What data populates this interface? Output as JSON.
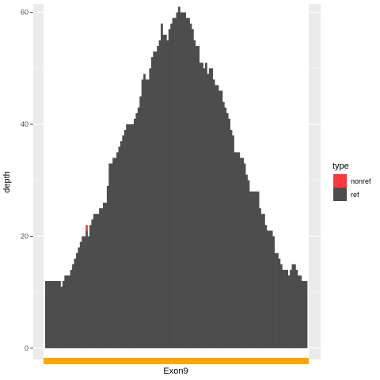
{
  "chart_data": {
    "type": "bar",
    "title": "",
    "xlabel": "",
    "ylabel": "depth",
    "ylim": [
      -2,
      61.5
    ],
    "yticks": [
      0,
      20,
      40,
      60
    ],
    "grid": true,
    "legend_position": "right",
    "legend_title": "type",
    "series": [
      {
        "name": "ref",
        "color": "#4d4d4d",
        "values": [
          12,
          12,
          12,
          12,
          12,
          12,
          12,
          12,
          11,
          12,
          13,
          13,
          13,
          14,
          15,
          16,
          17,
          18,
          19,
          20,
          20,
          21,
          20,
          22,
          23,
          24,
          24,
          24,
          25,
          25,
          26,
          26,
          29,
          33,
          33,
          34,
          34,
          35,
          36,
          37,
          38,
          39,
          40,
          40,
          40,
          40,
          41,
          42,
          43,
          45,
          48,
          49,
          48,
          48,
          50,
          52,
          53,
          53,
          54,
          55,
          58,
          56,
          56,
          55,
          57,
          58,
          59,
          59,
          60,
          61,
          60,
          60,
          60,
          59,
          59,
          58,
          57,
          55,
          54,
          54,
          51,
          51,
          50,
          51,
          49,
          50,
          50,
          48,
          47,
          47,
          46,
          46,
          44,
          43,
          42,
          41,
          39,
          38,
          35,
          35,
          35,
          34,
          34,
          33,
          31,
          30,
          28,
          28,
          28,
          28,
          28,
          25,
          24,
          24,
          22,
          21,
          21,
          21,
          20,
          17,
          17,
          16,
          15,
          14,
          14,
          14,
          13,
          14,
          15,
          15,
          14,
          13,
          13,
          12,
          12,
          12
        ]
      },
      {
        "name": "nonref",
        "color": "#f8393c",
        "values": [
          0,
          0,
          0,
          0,
          0,
          0,
          0,
          0,
          0,
          0,
          0,
          0,
          0,
          0,
          0,
          0,
          0,
          0,
          0,
          0,
          0,
          1,
          0,
          0,
          0,
          0,
          0,
          0,
          0,
          0,
          0,
          0,
          0,
          0,
          0,
          0,
          0,
          0,
          0,
          0,
          0,
          0,
          0,
          0,
          0,
          0,
          0,
          0,
          0,
          0,
          0,
          0,
          0,
          0,
          0,
          0,
          0,
          0,
          0,
          0,
          0,
          0,
          0,
          0,
          0,
          0,
          0,
          0,
          0,
          0,
          0,
          0,
          0,
          0,
          0,
          0,
          0,
          0,
          0,
          0,
          0,
          0,
          0,
          0,
          0,
          0,
          0,
          0,
          0,
          0,
          0,
          0,
          0,
          0,
          0,
          0,
          0,
          0,
          0,
          0,
          0,
          0,
          0,
          0,
          0,
          0,
          0,
          0,
          0,
          0,
          0,
          0,
          0,
          0,
          0,
          0,
          0,
          0,
          0,
          0,
          0,
          0,
          0,
          0,
          0,
          0,
          0,
          0,
          0,
          0,
          0,
          0,
          0,
          0,
          0,
          0
        ]
      }
    ],
    "legend": [
      {
        "label": "nonref",
        "color": "#f8393c"
      },
      {
        "label": "ref",
        "color": "#4d4d4d"
      }
    ],
    "feature_track": {
      "label": "Exon9",
      "color": "#ffa500"
    }
  }
}
